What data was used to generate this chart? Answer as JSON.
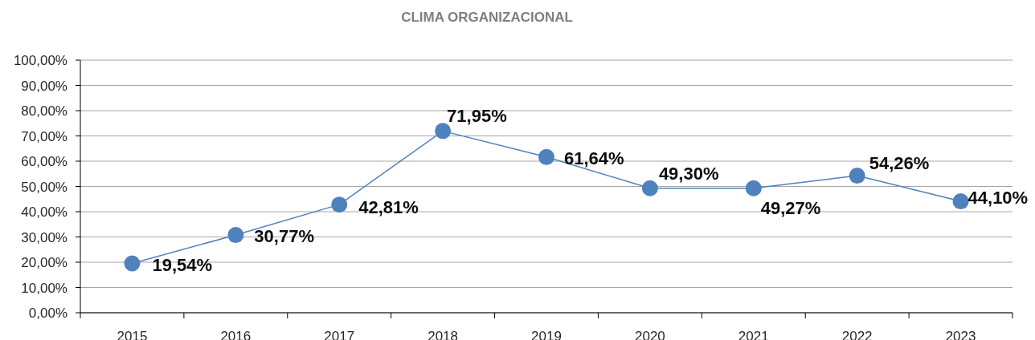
{
  "chart_data": {
    "type": "line",
    "title": "CLIMA ORGANIZACIONAL",
    "categories": [
      "2015",
      "2016",
      "2017",
      "2018",
      "2019",
      "2020",
      "2021",
      "2022",
      "2023"
    ],
    "values": [
      19.54,
      30.77,
      42.81,
      71.95,
      61.64,
      49.3,
      49.27,
      54.26,
      44.1
    ],
    "value_labels": [
      "19,54%",
      "30,77%",
      "42,81%",
      "71,95%",
      "61,64%",
      "49,30%",
      "49,27%",
      "54,26%",
      "44,10%"
    ],
    "color": "#4f81bd",
    "ylim": [
      0,
      100
    ],
    "yticks": [
      {
        "value": 0,
        "label": "0,00%"
      },
      {
        "value": 10,
        "label": "10,00%"
      },
      {
        "value": 20,
        "label": "20,00%"
      },
      {
        "value": 30,
        "label": "30,00%"
      },
      {
        "value": 40,
        "label": "40,00%"
      },
      {
        "value": 50,
        "label": "50,00%"
      },
      {
        "value": 60,
        "label": "60,00%"
      },
      {
        "value": 70,
        "label": "70,00%"
      },
      {
        "value": 80,
        "label": "80,00%"
      },
      {
        "value": 90,
        "label": "90,00%"
      },
      {
        "value": 100,
        "label": "100,00%"
      }
    ],
    "grid": "y",
    "marker": "circle"
  }
}
